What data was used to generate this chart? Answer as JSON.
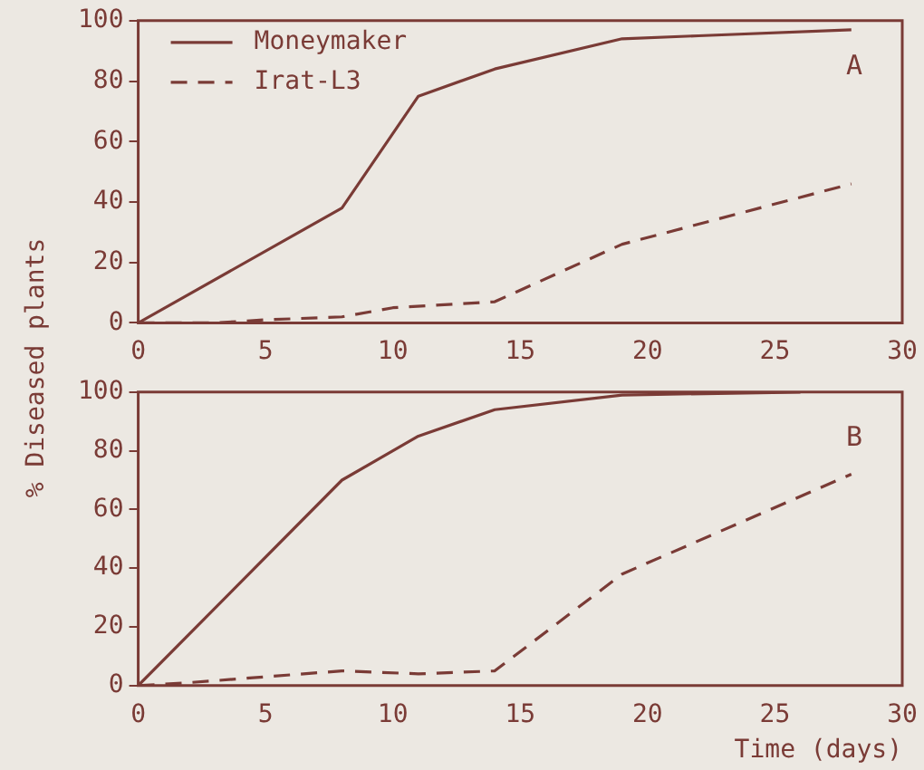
{
  "chart_data": [
    {
      "type": "line",
      "ylabel": "% Diseased plants",
      "xlim": [
        0,
        30
      ],
      "xticks": [
        0,
        5,
        10,
        15,
        20,
        25,
        30
      ],
      "ylim": [
        0,
        100
      ],
      "yticks": [
        0,
        20,
        40,
        60,
        80,
        100
      ],
      "grid": false,
      "legend": "top left",
      "marker": "none",
      "annotations": [
        "A"
      ],
      "series": [
        {
          "name": "Moneymaker",
          "color": "#7a3b36",
          "line_style": "solid",
          "x": [
            0,
            8,
            11,
            14,
            19,
            22,
            28
          ],
          "values": [
            0,
            38,
            75,
            84,
            94,
            95,
            97
          ]
        },
        {
          "name": "Irat-L3",
          "color": "#7a3b36",
          "line_style": "dashed",
          "x": [
            0,
            3,
            5,
            8,
            10,
            14,
            19,
            28
          ],
          "values": [
            0,
            0,
            1,
            2,
            5,
            7,
            26,
            46
          ]
        }
      ]
    },
    {
      "type": "line",
      "xlabel": "Time (days)",
      "xlim": [
        0,
        30
      ],
      "xticks": [
        0,
        5,
        10,
        15,
        20,
        25,
        30
      ],
      "ylim": [
        0,
        100
      ],
      "yticks": [
        0,
        20,
        40,
        60,
        80,
        100
      ],
      "grid": false,
      "marker": "none",
      "annotations": [
        "B"
      ],
      "series": [
        {
          "color": "#7a3b36",
          "line_style": "solid",
          "x": [
            0,
            8,
            11,
            14,
            19,
            26
          ],
          "values": [
            0,
            70,
            85,
            94,
            99,
            100
          ]
        },
        {
          "color": "#7a3b36",
          "line_style": "dashed",
          "x": [
            0,
            2,
            5,
            8,
            11,
            14,
            19,
            28
          ],
          "values": [
            0,
            1,
            3,
            5,
            4,
            5,
            38,
            72
          ]
        }
      ]
    }
  ]
}
